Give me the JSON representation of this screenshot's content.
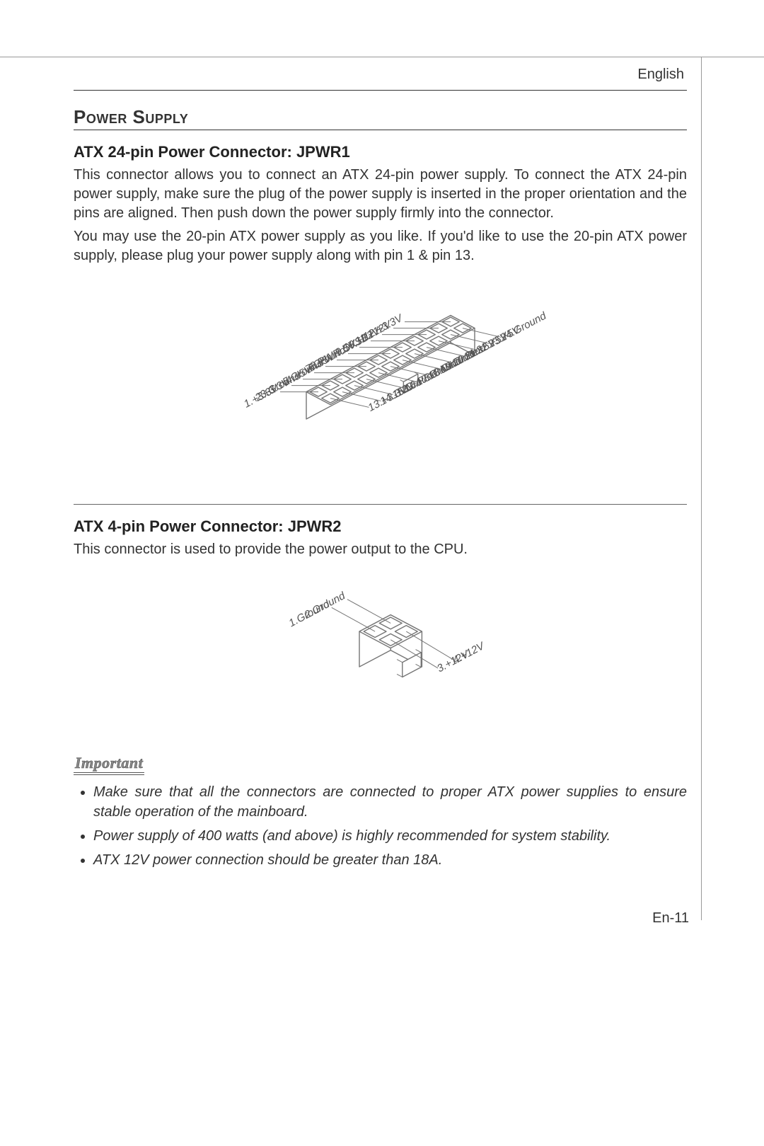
{
  "lang_label": "English",
  "page_number": "En-11",
  "section_title": "Power Supply",
  "jpwr1": {
    "heading": "ATX 24-pin Power Connector: JPWR1",
    "para1": "This connector allows you to connect an ATX 24-pin power supply. To connect the ATX 24-pin power supply, make sure the plug of the power supply is inserted in the proper orientation and the pins are aligned. Then push down the power supply firmly into the connector.",
    "para2": "You may use the 20-pin ATX power supply as you like. If you'd like to use the 20-pin ATX power supply, please plug your power supply along with pin 1 & pin 13.",
    "diagram": {
      "stroke": "#757575",
      "label_color": "#555555",
      "label_fontsize": 15,
      "top_pins": [
        {
          "n": "1",
          "label": "+3.3V"
        },
        {
          "n": "2",
          "label": "+3.3V"
        },
        {
          "n": "3",
          "label": "Ground"
        },
        {
          "n": "4",
          "label": "+5V"
        },
        {
          "n": "5",
          "label": "Ground"
        },
        {
          "n": "6",
          "label": "+5V"
        },
        {
          "n": "7",
          "label": "Ground"
        },
        {
          "n": "8",
          "label": "PWR OK"
        },
        {
          "n": "9",
          "label": "5VSB"
        },
        {
          "n": "10",
          "label": "+12V"
        },
        {
          "n": "11",
          "label": "+12V"
        },
        {
          "n": "12",
          "label": "+3.3V"
        }
      ],
      "bottom_pins": [
        {
          "n": "13",
          "label": "+3.3V"
        },
        {
          "n": "14",
          "label": "-12V"
        },
        {
          "n": "15",
          "label": "Ground"
        },
        {
          "n": "16",
          "label": "PS-ON#"
        },
        {
          "n": "17",
          "label": "Ground"
        },
        {
          "n": "18",
          "label": "Ground"
        },
        {
          "n": "19",
          "label": "Ground"
        },
        {
          "n": "20",
          "label": "Res"
        },
        {
          "n": "21",
          "label": "+5V"
        },
        {
          "n": "22",
          "label": "+5V"
        },
        {
          "n": "23",
          "label": "+5V"
        },
        {
          "n": "24",
          "label": "Ground"
        }
      ]
    }
  },
  "jpwr2": {
    "heading": "ATX 4-pin Power Connector: JPWR2",
    "para": "This connector is used to provide the power output to the CPU.",
    "diagram": {
      "stroke": "#757575",
      "label_color": "#555555",
      "label_fontsize": 15,
      "left_pins": [
        {
          "n": "1",
          "label": "Ground"
        },
        {
          "n": "2",
          "label": "Ground"
        }
      ],
      "right_pins": [
        {
          "n": "3",
          "label": "+12V"
        },
        {
          "n": "4",
          "label": "+12V"
        }
      ]
    }
  },
  "important": {
    "heading": "Important",
    "notes": [
      "Make sure that all the connectors are connected to proper ATX power supplies to ensure stable operation of the mainboard.",
      "Power supply of 400 watts (and above) is highly recommended for system stability.",
      "ATX 12V power connection should be greater than 18A."
    ]
  }
}
